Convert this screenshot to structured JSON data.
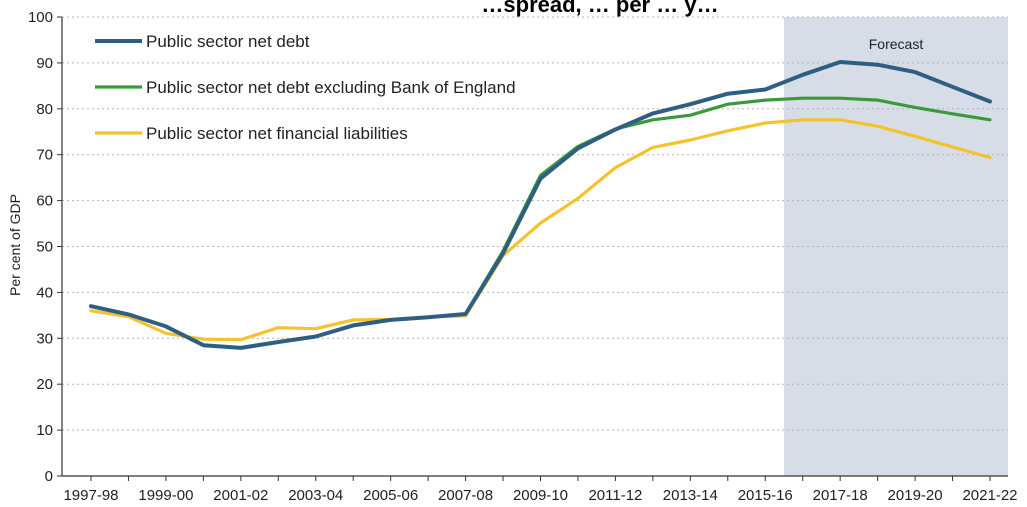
{
  "chart_data": {
    "type": "line",
    "title": "…spread, … per … y…",
    "ylabel": "Per cent of GDP",
    "xlabel": "",
    "ylim": [
      0,
      100
    ],
    "yticks": [
      0,
      10,
      20,
      30,
      40,
      50,
      60,
      70,
      80,
      90,
      100
    ],
    "grid": true,
    "legend_position": "top-left",
    "forecast_label": "Forecast",
    "forecast_start": "2016-17",
    "forecast_color": "#d6dde6",
    "x": [
      "1997-98",
      "1998-99",
      "1999-00",
      "2000-01",
      "2001-02",
      "2002-03",
      "2003-04",
      "2004-05",
      "2005-06",
      "2006-07",
      "2007-08",
      "2008-09",
      "2009-10",
      "2010-11",
      "2011-12",
      "2012-13",
      "2013-14",
      "2014-15",
      "2015-16",
      "2016-17",
      "2017-18",
      "2018-19",
      "2019-20",
      "2020-21",
      "2021-22"
    ],
    "x_tick_labels": [
      "1997-98",
      "1999-00",
      "2001-02",
      "2003-04",
      "2005-06",
      "2007-08",
      "2009-10",
      "2011-12",
      "2013-14",
      "2015-16",
      "2017-18",
      "2019-20",
      "2021-22"
    ],
    "series": [
      {
        "name": "Public sector net debt",
        "color": "#2e5f82",
        "values": [
          37.0,
          35.2,
          32.6,
          28.5,
          27.9,
          29.2,
          30.4,
          32.8,
          34.0,
          34.6,
          35.3,
          48.5,
          64.8,
          71.4,
          75.5,
          79.0,
          81.0,
          83.3,
          84.2,
          87.4,
          90.2,
          89.6,
          88.0,
          84.8,
          81.6
        ]
      },
      {
        "name": "Public sector net debt excluding Bank of England",
        "color": "#3a9a3a",
        "values": [
          37.0,
          35.2,
          32.6,
          28.5,
          27.9,
          29.2,
          30.4,
          32.8,
          34.0,
          34.6,
          35.3,
          49.0,
          65.5,
          71.8,
          75.6,
          77.6,
          78.6,
          81.0,
          81.9,
          82.3,
          82.3,
          81.9,
          80.3,
          78.9,
          77.6
        ]
      },
      {
        "name": "Public sector net financial liabilities",
        "color": "#f5c12f",
        "values": [
          36.0,
          34.7,
          31.1,
          29.8,
          29.7,
          32.3,
          32.1,
          34.0,
          34.1,
          34.6,
          34.9,
          48.0,
          55.1,
          60.5,
          67.2,
          71.6,
          73.2,
          75.2,
          76.9,
          77.6,
          77.6,
          76.2,
          74.0,
          71.7,
          69.4
        ]
      }
    ]
  }
}
